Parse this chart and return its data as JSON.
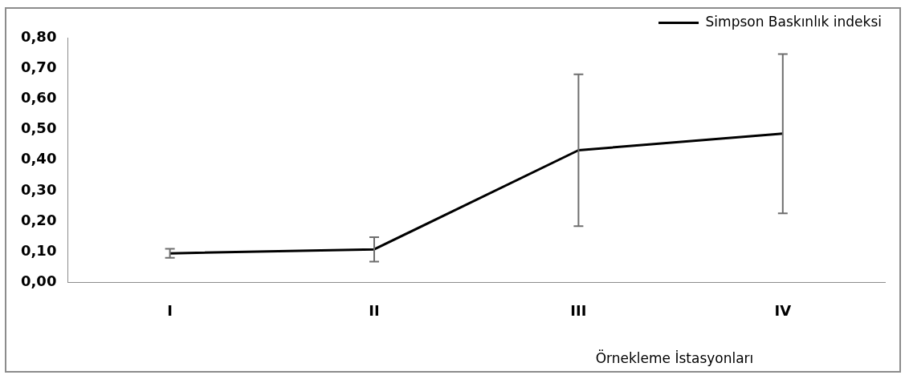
{
  "chart_data": {
    "type": "line",
    "xlabel": "Örnekleme İstasyonları",
    "categories": [
      "I",
      "II",
      "III",
      "IV"
    ],
    "series": [
      {
        "name": "Simpson Baskınlık indeksi",
        "color": "#000000",
        "values": [
          0.095,
          0.108,
          0.432,
          0.486
        ],
        "errors": [
          0.015,
          0.04,
          0.248,
          0.26
        ]
      }
    ],
    "ylim": [
      0,
      0.8
    ],
    "yticks": [
      {
        "value": 0,
        "label": "0,00"
      },
      {
        "value": 0.1,
        "label": "0,10"
      },
      {
        "value": 0.2,
        "label": "0,20"
      },
      {
        "value": 0.3,
        "label": "0,30"
      },
      {
        "value": 0.4,
        "label": "0,40"
      },
      {
        "value": 0.5,
        "label": "0,50"
      },
      {
        "value": 0.6,
        "label": "0,60"
      },
      {
        "value": 0.7,
        "label": "0,70"
      },
      {
        "value": 0.8,
        "label": "0,80"
      }
    ],
    "grid": false,
    "legend": "top right",
    "marker": "none",
    "line_style": "solid"
  }
}
